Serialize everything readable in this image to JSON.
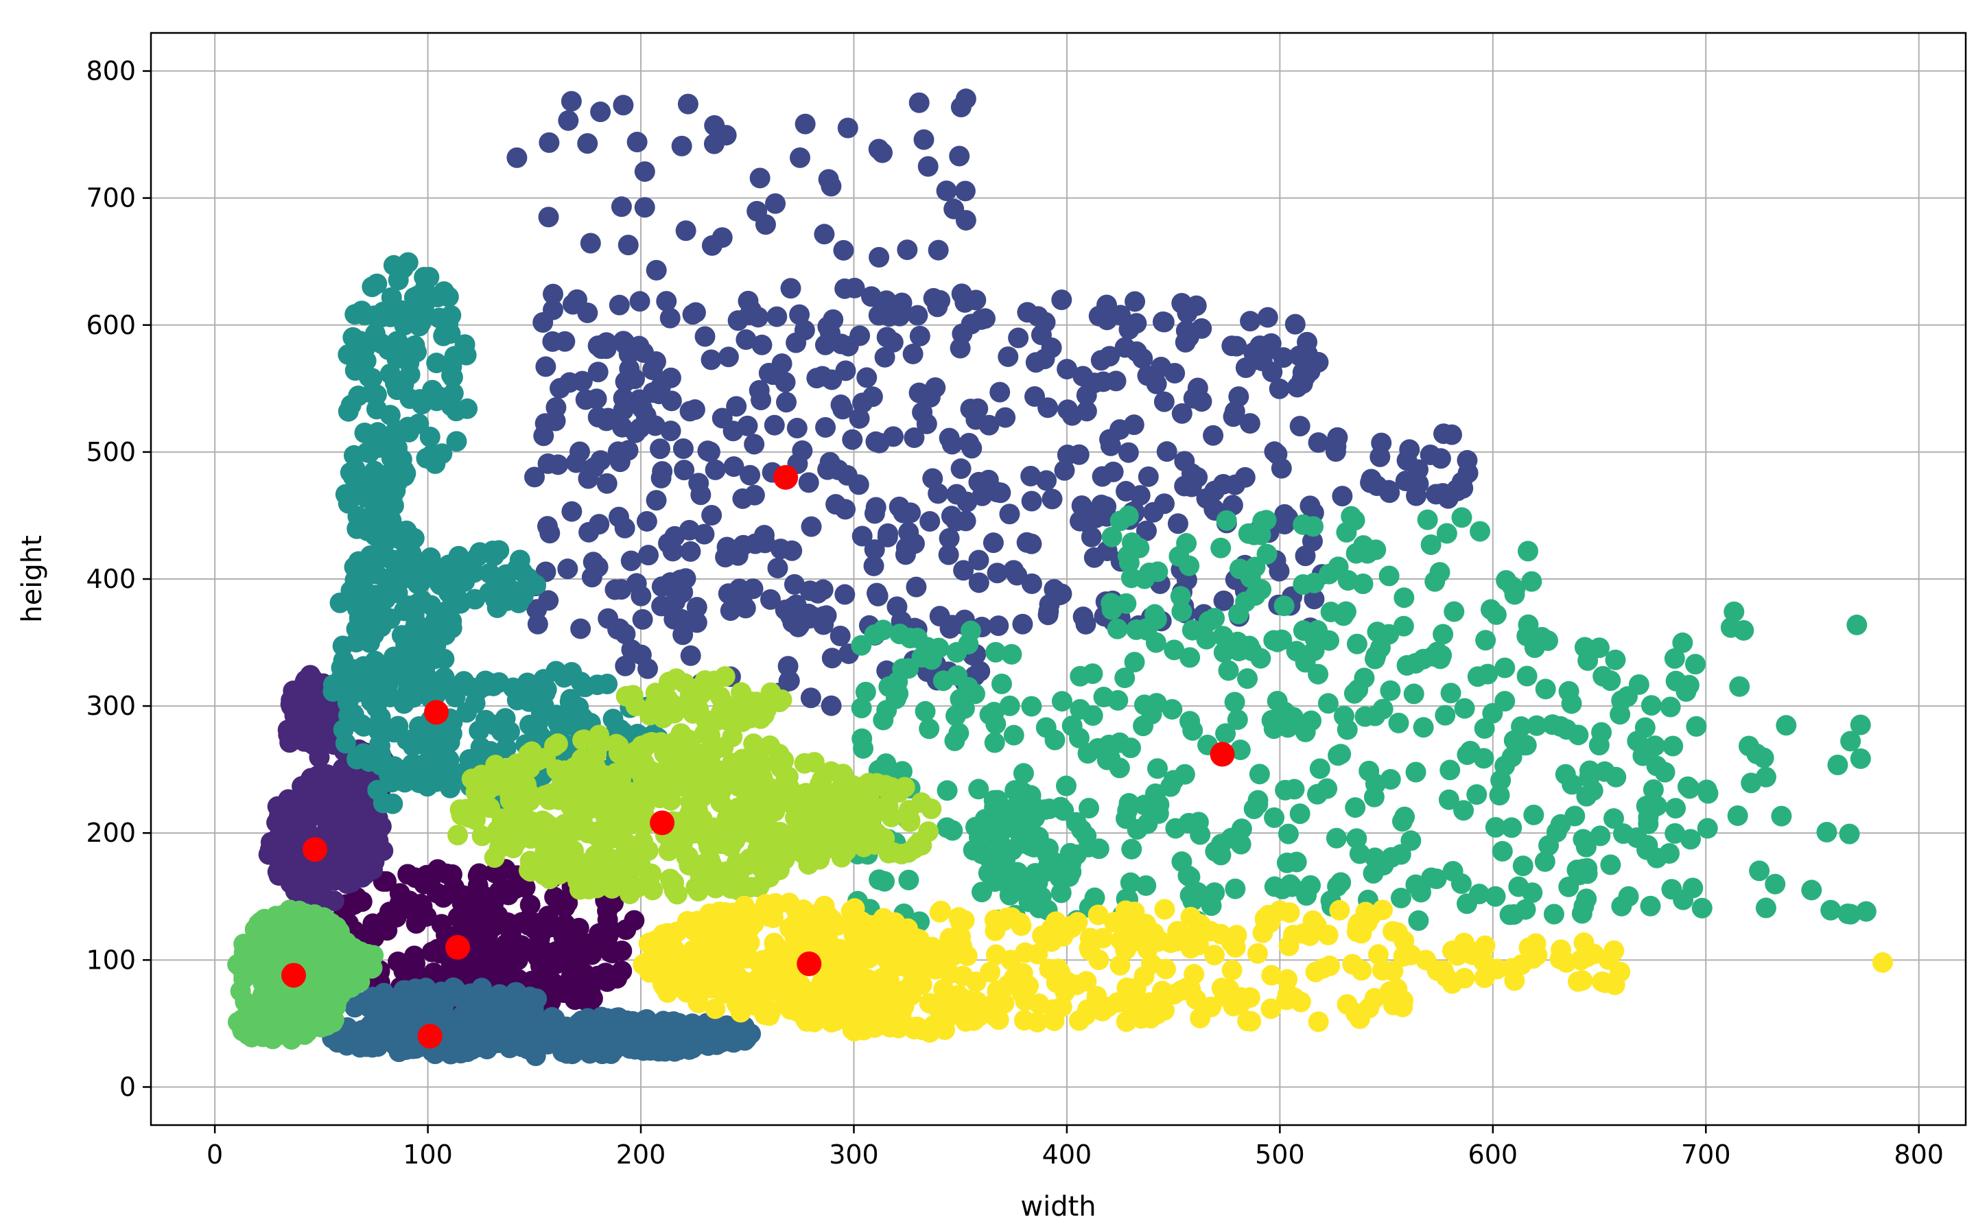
{
  "chart_data": {
    "type": "scatter",
    "title": "",
    "xlabel": "width",
    "ylabel": "height",
    "xlim": [
      -30,
      822
    ],
    "ylim": [
      -30,
      830
    ],
    "xticks": [
      0,
      100,
      200,
      300,
      400,
      500,
      600,
      700,
      800
    ],
    "yticks": [
      0,
      100,
      200,
      300,
      400,
      500,
      600,
      700,
      800
    ],
    "grid": true,
    "centroid_color": "#ff0000",
    "clusters": [
      {
        "name": "cluster-0",
        "color": "#440154",
        "center": [
          114,
          110
        ],
        "regions": [
          {
            "type": "ellipse",
            "cx": 125,
            "cy": 115,
            "rx": 75,
            "ry": 60,
            "n": 260
          },
          {
            "type": "ellipse",
            "cx": 145,
            "cy": 85,
            "rx": 40,
            "ry": 30,
            "n": 60
          }
        ]
      },
      {
        "name": "cluster-1",
        "color": "#482878",
        "center": [
          47,
          187
        ],
        "regions": [
          {
            "type": "ellipse",
            "cx": 52,
            "cy": 195,
            "rx": 28,
            "ry": 50,
            "n": 200
          },
          {
            "type": "ellipse",
            "cx": 45,
            "cy": 290,
            "rx": 12,
            "ry": 35,
            "n": 60
          },
          {
            "type": "ellipse",
            "cx": 62,
            "cy": 245,
            "rx": 20,
            "ry": 30,
            "n": 50
          }
        ]
      },
      {
        "name": "cluster-2",
        "color": "#3e4989",
        "center": [
          268,
          480
        ],
        "regions": [
          {
            "type": "scatter",
            "x": [
              150,
              520
            ],
            "y": [
              360,
              620
            ],
            "n": 480
          },
          {
            "type": "scatter",
            "x": [
              140,
              360
            ],
            "y": [
              600,
              780
            ],
            "n": 70
          },
          {
            "type": "scatter",
            "x": [
              180,
              360
            ],
            "y": [
              300,
              380
            ],
            "n": 50
          },
          {
            "type": "scatter",
            "x": [
              520,
              590
            ],
            "y": [
              460,
              520
            ],
            "n": 30
          }
        ]
      },
      {
        "name": "cluster-3",
        "color": "#31688e",
        "center": [
          101,
          40
        ],
        "regions": [
          {
            "type": "ellipse",
            "cx": 150,
            "cy": 40,
            "rx": 100,
            "ry": 16,
            "n": 320
          },
          {
            "type": "ellipse",
            "cx": 110,
            "cy": 65,
            "rx": 45,
            "ry": 14,
            "n": 80
          },
          {
            "type": "ellipse",
            "cx": 220,
            "cy": 42,
            "rx": 35,
            "ry": 10,
            "n": 60
          }
        ]
      },
      {
        "name": "cluster-4",
        "color": "#21918c",
        "center": [
          104,
          295
        ],
        "regions": [
          {
            "type": "ellipse",
            "cx": 85,
            "cy": 330,
            "rx": 30,
            "ry": 110,
            "n": 220
          },
          {
            "type": "ellipse",
            "cx": 150,
            "cy": 275,
            "rx": 60,
            "ry": 55,
            "n": 180
          },
          {
            "type": "ellipse",
            "cx": 90,
            "cy": 560,
            "rx": 30,
            "ry": 90,
            "n": 110
          },
          {
            "type": "ellipse",
            "cx": 130,
            "cy": 400,
            "rx": 25,
            "ry": 25,
            "n": 40
          },
          {
            "type": "ellipse",
            "cx": 75,
            "cy": 470,
            "rx": 14,
            "ry": 40,
            "n": 40
          }
        ]
      },
      {
        "name": "cluster-5",
        "color": "#2ab07f",
        "center": [
          473,
          262
        ],
        "regions": [
          {
            "type": "scatter",
            "x": [
              300,
              700
            ],
            "y": [
              130,
              360
            ],
            "n": 430
          },
          {
            "type": "scatter",
            "x": [
              420,
              620
            ],
            "y": [
              350,
              450
            ],
            "n": 90
          },
          {
            "type": "scatter",
            "x": [
              700,
              782
            ],
            "y": [
              120,
              380
            ],
            "n": 30
          },
          {
            "type": "ellipse",
            "cx": 380,
            "cy": 190,
            "rx": 25,
            "ry": 45,
            "n": 70
          }
        ]
      },
      {
        "name": "cluster-6",
        "color": "#5ec962",
        "center": [
          37,
          88
        ],
        "regions": [
          {
            "type": "ellipse",
            "cx": 38,
            "cy": 90,
            "rx": 28,
            "ry": 50,
            "n": 220
          },
          {
            "type": "ellipse",
            "cx": 28,
            "cy": 50,
            "rx": 18,
            "ry": 14,
            "n": 60
          },
          {
            "type": "ellipse",
            "cx": 55,
            "cy": 95,
            "rx": 22,
            "ry": 20,
            "n": 50
          }
        ]
      },
      {
        "name": "cluster-7",
        "color": "#a8db34",
        "center": [
          210,
          208
        ],
        "regions": [
          {
            "type": "ellipse",
            "cx": 210,
            "cy": 215,
            "rx": 100,
            "ry": 65,
            "n": 520
          },
          {
            "type": "ellipse",
            "cx": 310,
            "cy": 210,
            "rx": 30,
            "ry": 30,
            "n": 60
          },
          {
            "type": "ellipse",
            "cx": 230,
            "cy": 305,
            "rx": 40,
            "ry": 20,
            "n": 50
          }
        ]
      },
      {
        "name": "cluster-8",
        "color": "#fde725",
        "center": [
          279,
          97
        ],
        "regions": [
          {
            "type": "ellipse",
            "cx": 270,
            "cy": 100,
            "rx": 70,
            "ry": 45,
            "n": 330
          },
          {
            "type": "scatter",
            "x": [
              340,
              560
            ],
            "y": [
              50,
              140
            ],
            "n": 210
          },
          {
            "type": "scatter",
            "x": [
              560,
              660
            ],
            "y": [
              80,
              115
            ],
            "n": 40
          },
          {
            "type": "ellipse",
            "cx": 320,
            "cy": 60,
            "rx": 50,
            "ry": 18,
            "n": 70
          }
        ]
      }
    ],
    "outlier_points": [
      {
        "cluster": 8,
        "x": 783,
        "y": 98
      }
    ]
  }
}
